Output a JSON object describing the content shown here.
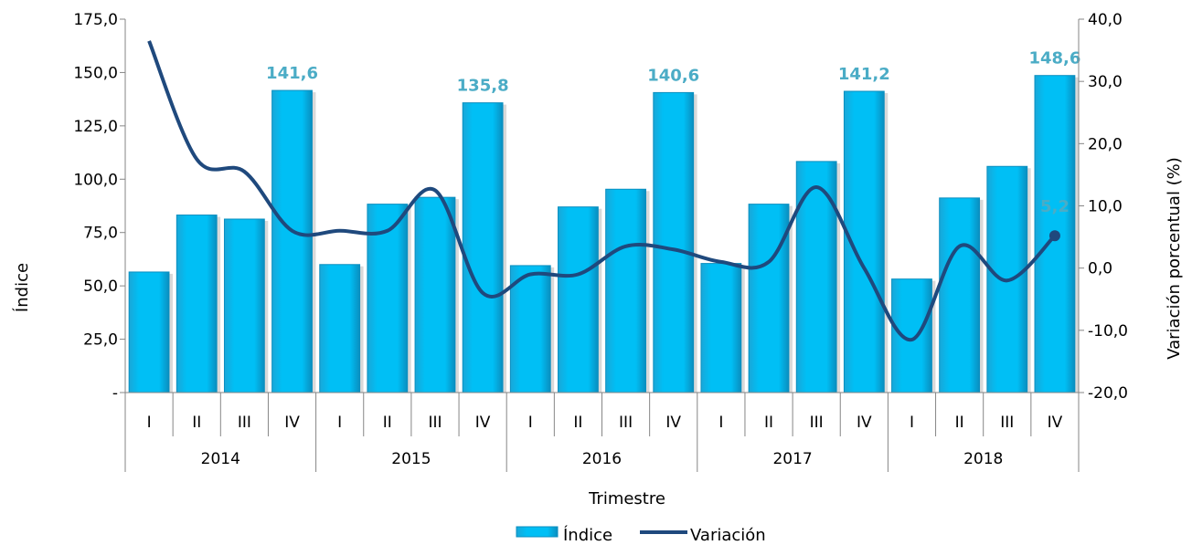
{
  "chart_data": {
    "type": "bar",
    "xlabel": "Trimestre",
    "ylabel": "Índice",
    "y2label": "Variación porcentual (%)",
    "ylim": [
      0,
      175
    ],
    "y2lim": [
      -20,
      40
    ],
    "yticks": [
      "-",
      "25,0",
      "50,0",
      "75,0",
      "100,0",
      "125,0",
      "150,0",
      "175,0"
    ],
    "y2ticks": [
      "-20,0",
      "-10,0",
      "0,0",
      "10,0",
      "20,0",
      "30,0",
      "40,0"
    ],
    "years": [
      "2014",
      "2015",
      "2016",
      "2017",
      "2018"
    ],
    "quarters": [
      "I",
      "II",
      "III",
      "IV"
    ],
    "series": [
      {
        "name": "Índice",
        "type": "bar",
        "color": "#00b0f0",
        "axis": "left",
        "values": [
          56.5,
          83.2,
          81.3,
          141.6,
          60.0,
          88.3,
          91.5,
          135.8,
          59.5,
          87.0,
          95.3,
          140.6,
          60.5,
          88.3,
          108.3,
          141.2,
          53.2,
          91.2,
          106.0,
          148.6
        ]
      },
      {
        "name": "Variación",
        "type": "line",
        "color": "#1f497d",
        "axis": "right",
        "values": [
          36.5,
          17.5,
          15.5,
          6.0,
          6.0,
          6.0,
          12.5,
          -4.0,
          -1.0,
          -1.0,
          3.5,
          3.0,
          1.0,
          1.0,
          13.0,
          0.0,
          -11.5,
          3.5,
          -2.0,
          5.2
        ]
      }
    ],
    "data_labels": [
      {
        "index": 3,
        "text": "141,6"
      },
      {
        "index": 7,
        "text": "135,8"
      },
      {
        "index": 11,
        "text": "140,6"
      },
      {
        "index": 15,
        "text": "141,2"
      },
      {
        "index": 19,
        "text": "148,6"
      }
    ],
    "line_label": {
      "index": 19,
      "text": "5,2"
    },
    "legend_position": "bottom"
  }
}
